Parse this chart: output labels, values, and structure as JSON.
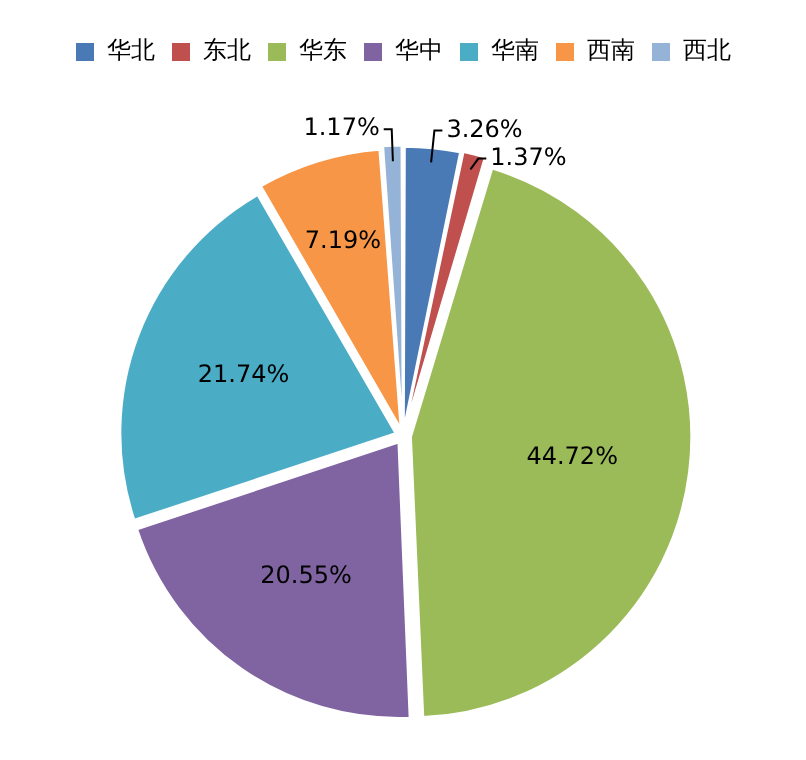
{
  "chart_data": {
    "type": "pie",
    "categories": [
      "华北",
      "东北",
      "华东",
      "华中",
      "华南",
      "西南",
      "西北"
    ],
    "values": [
      3.26,
      1.37,
      44.72,
      20.55,
      21.74,
      7.19,
      1.17
    ],
    "colors": [
      "#4a7ab5",
      "#c0504d",
      "#9bbb59",
      "#8064a2",
      "#4bacc6",
      "#f79646",
      "#95b3d7"
    ],
    "value_labels": [
      "3.26%",
      "1.37%",
      "44.72%",
      "20.55%",
      "21.74%",
      "7.19%",
      "1.17%"
    ],
    "legend": "top"
  }
}
